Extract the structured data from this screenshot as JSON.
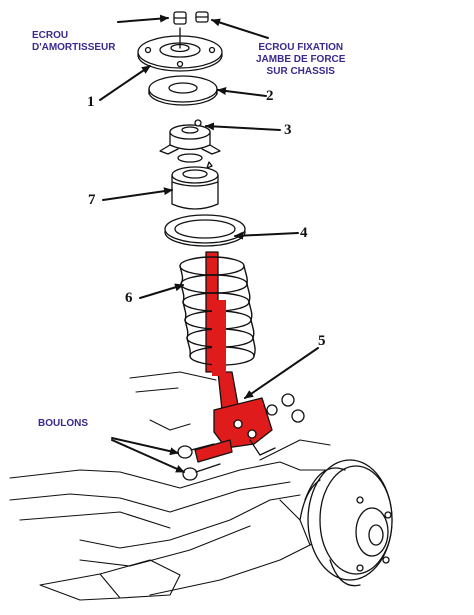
{
  "labels": {
    "ecrou_amortisseur_line1": "ECROU",
    "ecrou_amortisseur_line2": "D'AMORTISSEUR",
    "ecrou_fixation_line1": "ECROU FIXATION",
    "ecrou_fixation_line2": "JAMBE DE FORCE",
    "ecrou_fixation_line3": "SUR CHASSIS",
    "boulons": "BOULONS"
  },
  "callouts": [
    "1",
    "2",
    "3",
    "4",
    "5",
    "6",
    "7"
  ],
  "colors": {
    "label_text": "#3b2a8c",
    "line_art": "#111111",
    "highlight_red": "#e01b1b"
  }
}
